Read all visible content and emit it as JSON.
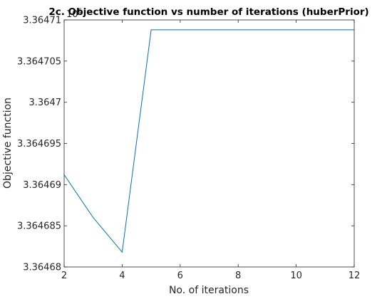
{
  "chart_data": {
    "type": "line",
    "title": "2c. Objective function vs number of iterations (huberPrior)",
    "xlabel": "No. of iterations",
    "ylabel": "Objective function",
    "xlim": [
      2,
      12
    ],
    "ylim": [
      3.36468,
      3.36471
    ],
    "exponent_base": "10",
    "exponent_power": "6",
    "x_ticks": [
      "2",
      "4",
      "6",
      "8",
      "10",
      "12"
    ],
    "y_ticks": [
      "3.36468",
      "3.364685",
      "3.36469",
      "3.364695",
      "3.3647",
      "3.364705",
      "3.36471"
    ],
    "series": [
      {
        "color": "#0072bd",
        "x": [
          2,
          3,
          4,
          5,
          6,
          7,
          8,
          9,
          10,
          11,
          12
        ],
        "y": [
          3.3646912,
          3.364686,
          3.3646818,
          3.3647088,
          3.3647088,
          3.3647088,
          3.3647088,
          3.3647088,
          3.3647088,
          3.3647088,
          3.3647088
        ]
      }
    ],
    "grid": false,
    "legend": "none"
  }
}
